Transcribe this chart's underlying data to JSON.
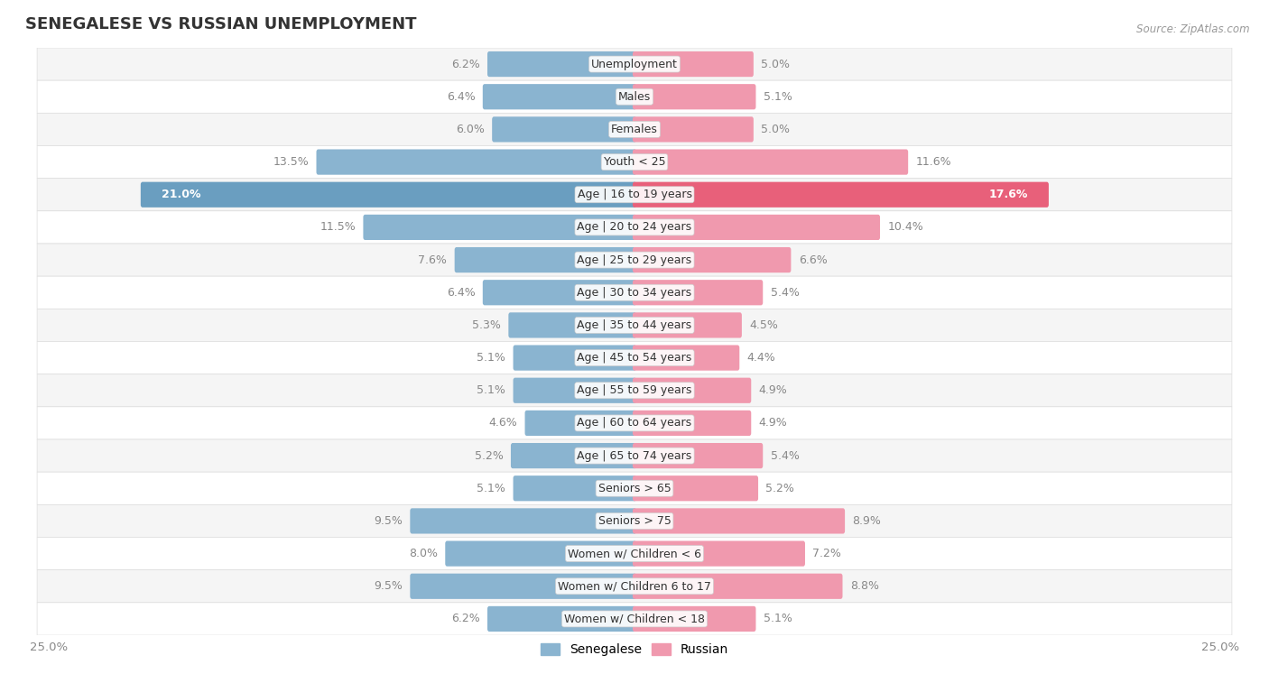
{
  "title": "SENEGALESE VS RUSSIAN UNEMPLOYMENT",
  "source": "Source: ZipAtlas.com",
  "categories": [
    "Unemployment",
    "Males",
    "Females",
    "Youth < 25",
    "Age | 16 to 19 years",
    "Age | 20 to 24 years",
    "Age | 25 to 29 years",
    "Age | 30 to 34 years",
    "Age | 35 to 44 years",
    "Age | 45 to 54 years",
    "Age | 55 to 59 years",
    "Age | 60 to 64 years",
    "Age | 65 to 74 years",
    "Seniors > 65",
    "Seniors > 75",
    "Women w/ Children < 6",
    "Women w/ Children 6 to 17",
    "Women w/ Children < 18"
  ],
  "senegalese": [
    6.2,
    6.4,
    6.0,
    13.5,
    21.0,
    11.5,
    7.6,
    6.4,
    5.3,
    5.1,
    5.1,
    4.6,
    5.2,
    5.1,
    9.5,
    8.0,
    9.5,
    6.2
  ],
  "russian": [
    5.0,
    5.1,
    5.0,
    11.6,
    17.6,
    10.4,
    6.6,
    5.4,
    4.5,
    4.4,
    4.9,
    4.9,
    5.4,
    5.2,
    8.9,
    7.2,
    8.8,
    5.1
  ],
  "senegalese_color": "#8ab4d0",
  "russian_color": "#f099ae",
  "senegalese_highlight_color": "#6a9ec0",
  "russian_highlight_color": "#e8607a",
  "highlight_row": 4,
  "xlim": 25.0,
  "bar_height": 0.62,
  "background_color": "#ffffff",
  "row_bg_odd": "#f5f5f5",
  "row_bg_even": "#ffffff",
  "legend_senegalese": "Senegalese",
  "legend_russian": "Russian",
  "title_fontsize": 13,
  "label_fontsize": 9,
  "cat_fontsize": 9,
  "value_color": "#888888",
  "highlight_value_color": "#ffffff"
}
